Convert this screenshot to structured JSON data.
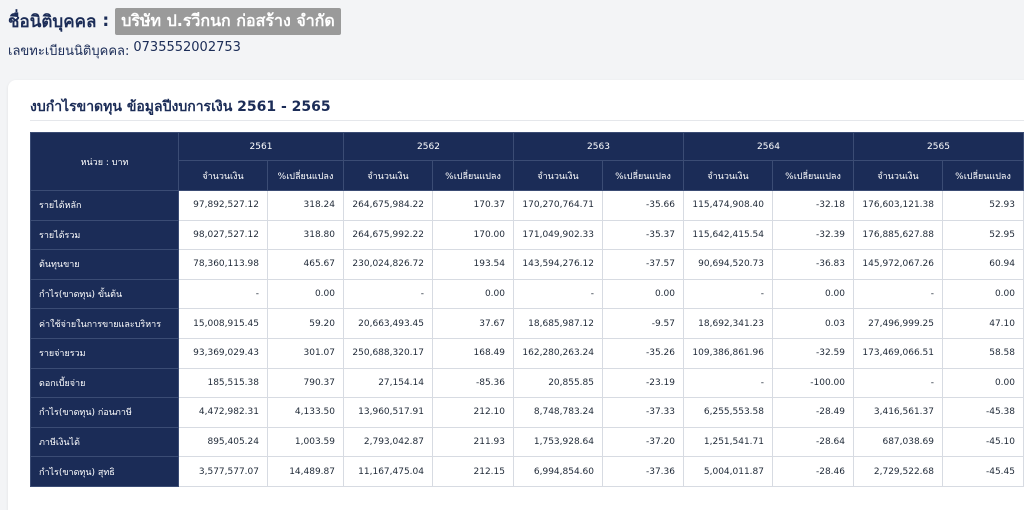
{
  "header": {
    "company_label": "ชื่อนิติบุคคล",
    "colon": ":",
    "company_name": "บริษัท ป.รวีกนก ก่อสร้าง จำกัด",
    "registration_label": "เลขทะเบียนนิติบุคคล:",
    "registration_number": "0735552002753"
  },
  "card": {
    "title": "งบกำไรขาดทุน ข้อมูลปีงบการเงิน 2561 - 2565"
  },
  "table": {
    "unit_label": "หน่วย : บาท",
    "years": [
      "2561",
      "2562",
      "2563",
      "2564",
      "2565"
    ],
    "amount_label": "จำนวนเงิน",
    "change_label": "%เปลี่ยนแปลง",
    "rows": [
      {
        "label": "รายได้หลัก",
        "cells": [
          "97,892,527.12",
          "318.24",
          "264,675,984.22",
          "170.37",
          "170,270,764.71",
          "-35.66",
          "115,474,908.40",
          "-32.18",
          "176,603,121.38",
          "52.93"
        ]
      },
      {
        "label": "รายได้รวม",
        "cells": [
          "98,027,527.12",
          "318.80",
          "264,675,992.22",
          "170.00",
          "171,049,902.33",
          "-35.37",
          "115,642,415.54",
          "-32.39",
          "176,885,627.88",
          "52.95"
        ]
      },
      {
        "label": "ต้นทุนขาย",
        "cells": [
          "78,360,113.98",
          "465.67",
          "230,024,826.72",
          "193.54",
          "143,594,276.12",
          "-37.57",
          "90,694,520.73",
          "-36.83",
          "145,972,067.26",
          "60.94"
        ]
      },
      {
        "label": "กำไร(ขาดทุน) ขั้นต้น",
        "cells": [
          "-",
          "0.00",
          "-",
          "0.00",
          "-",
          "0.00",
          "-",
          "0.00",
          "-",
          "0.00"
        ]
      },
      {
        "label": "ค่าใช้จ่ายในการขายและบริหาร",
        "cells": [
          "15,008,915.45",
          "59.20",
          "20,663,493.45",
          "37.67",
          "18,685,987.12",
          "-9.57",
          "18,692,341.23",
          "0.03",
          "27,496,999.25",
          "47.10"
        ]
      },
      {
        "label": "รายจ่ายรวม",
        "cells": [
          "93,369,029.43",
          "301.07",
          "250,688,320.17",
          "168.49",
          "162,280,263.24",
          "-35.26",
          "109,386,861.96",
          "-32.59",
          "173,469,066.51",
          "58.58"
        ]
      },
      {
        "label": "ดอกเบี้ยจ่าย",
        "cells": [
          "185,515.38",
          "790.37",
          "27,154.14",
          "-85.36",
          "20,855.85",
          "-23.19",
          "-",
          "-100.00",
          "-",
          "0.00"
        ]
      },
      {
        "label": "กำไร(ขาดทุน) ก่อนภาษี",
        "cells": [
          "4,472,982.31",
          "4,133.50",
          "13,960,517.91",
          "212.10",
          "8,748,783.24",
          "-37.33",
          "6,255,553.58",
          "-28.49",
          "3,416,561.37",
          "-45.38"
        ]
      },
      {
        "label": "ภาษีเงินได้",
        "cells": [
          "895,405.24",
          "1,003.59",
          "2,793,042.87",
          "211.93",
          "1,753,928.64",
          "-37.20",
          "1,251,541.71",
          "-28.64",
          "687,038.69",
          "-45.10"
        ]
      },
      {
        "label": "กำไร(ขาดทุน) สุทธิ",
        "cells": [
          "3,577,577.07",
          "14,489.87",
          "11,167,475.04",
          "212.15",
          "6,994,854.60",
          "-37.36",
          "5,004,011.87",
          "-28.46",
          "2,729,522.68",
          "-45.45"
        ]
      }
    ]
  },
  "colors": {
    "header_bg": "#1b2c57",
    "title_text": "#1b2c57",
    "highlight_bg": "#9a9a9a"
  }
}
